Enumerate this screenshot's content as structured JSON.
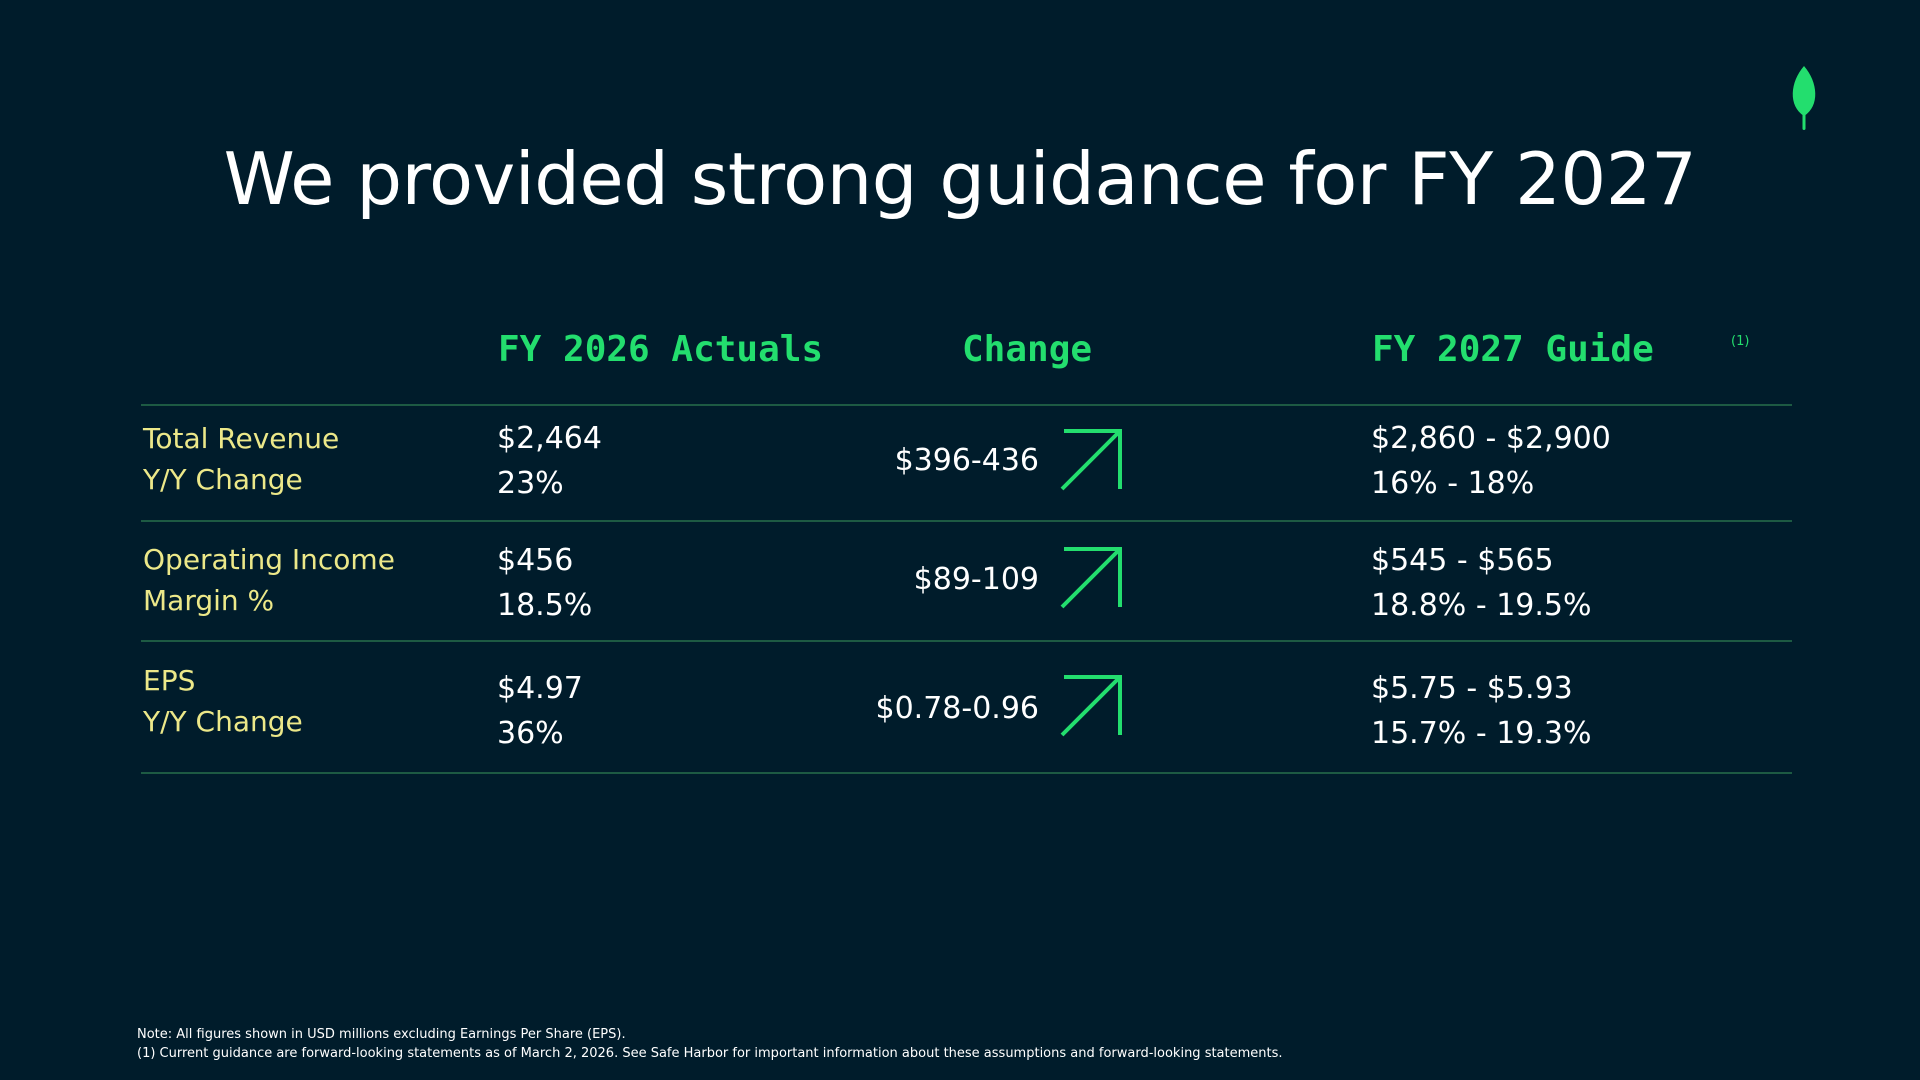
{
  "title": "We provided strong guidance for FY 2027",
  "columns": {
    "actuals": "FY 2026 Actuals",
    "change": "Change",
    "guide": "FY 2027 Guide",
    "guide_ref": "(1)"
  },
  "rows": [
    {
      "label1": "Total Revenue",
      "label2": "Y/Y Change",
      "actual1": "$2,464",
      "actual2": "23%",
      "change": "$396-436",
      "guide1": "$2,860 - $2,900",
      "guide2": "16% - 18%"
    },
    {
      "label1": "Operating Income",
      "label2": "Margin %",
      "actual1": "$456",
      "actual2": "18.5%",
      "change": "$89-109",
      "guide1": "$545 - $565",
      "guide2": "18.8% - 19.5%"
    },
    {
      "label1": "EPS",
      "label2": "Y/Y Change",
      "actual1": "$4.97",
      "actual2": "36%",
      "change": "$0.78-0.96",
      "guide1": "$5.75 - $5.93",
      "guide2": "15.7% - 19.3%"
    }
  ],
  "notes": {
    "line1": "Note: All figures shown in USD millions excluding Earnings Per Share (EPS).",
    "line2": "(1) Current guidance are forward-looking statements as of March 2, 2026.  See Safe Harbor for important information about these assumptions and forward-looking statements."
  },
  "icons": {
    "logo": "leaf-icon",
    "change_arrow": "arrow-up-right-icon"
  },
  "colors": {
    "background": "#001c2b",
    "accent_green": "#23de6e",
    "label_yellow": "#ece889",
    "rule": "#1d5a43",
    "text": "#ffffff"
  }
}
